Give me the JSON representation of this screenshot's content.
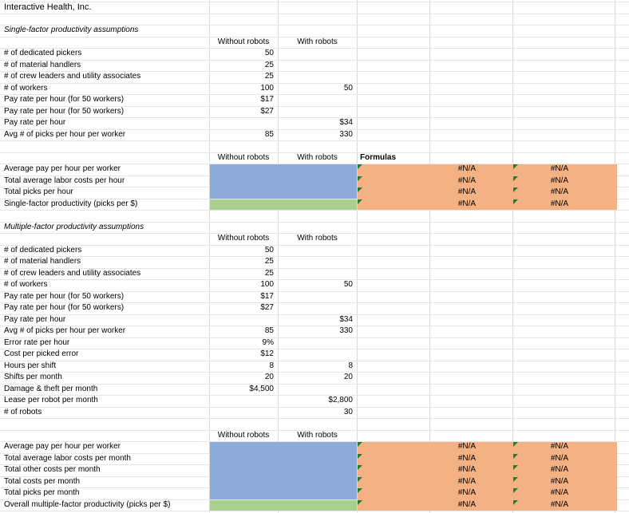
{
  "title": "Interactive Health, Inc.",
  "single_assumptions": {
    "heading": "Single-factor productivity assumptions",
    "col_without": "Without robots",
    "col_with": "With robots",
    "rows": [
      {
        "label": "# of dedicated pickers",
        "without": "50",
        "with": ""
      },
      {
        "label": "# of material handlers",
        "without": "25",
        "with": ""
      },
      {
        "label": "# of crew leaders and utility associates",
        "without": "25",
        "with": ""
      },
      {
        "label": "# of workers",
        "without": "100",
        "with": "50"
      },
      {
        "label": "Pay rate per hour (for 50 workers)",
        "without": "$17",
        "with": ""
      },
      {
        "label": "Pay rate per hour (for 50 workers)",
        "without": "$27",
        "with": ""
      },
      {
        "label": "Pay rate per hour",
        "without": "",
        "with": "$34"
      },
      {
        "label": "Avg # of picks per hour per worker",
        "without": "85",
        "with": "330"
      }
    ]
  },
  "single_results": {
    "col_without": "Without robots",
    "col_with": "With robots",
    "col_formulas": "Formulas",
    "rows": [
      {
        "label": "Average pay per hour per worker",
        "f1": "#N/A",
        "f2": "#N/A"
      },
      {
        "label": "Total average labor costs per hour",
        "f1": "#N/A",
        "f2": "#N/A"
      },
      {
        "label": "Total picks per hour",
        "f1": "#N/A",
        "f2": "#N/A"
      },
      {
        "label": "Single-factor productivity (picks per $)",
        "f1": "#N/A",
        "f2": "#N/A"
      }
    ]
  },
  "multi_assumptions": {
    "heading": "Multiple-factor productivity assumptions",
    "col_without": "Without robots",
    "col_with": "With robots",
    "rows": [
      {
        "label": "# of dedicated pickers",
        "without": "50",
        "with": ""
      },
      {
        "label": "# of material handlers",
        "without": "25",
        "with": ""
      },
      {
        "label": "# of crew leaders and utility associates",
        "without": "25",
        "with": ""
      },
      {
        "label": "# of workers",
        "without": "100",
        "with": "50"
      },
      {
        "label": "Pay rate per hour (for 50 workers)",
        "without": "$17",
        "with": ""
      },
      {
        "label": "Pay rate per hour (for 50 workers)",
        "without": "$27",
        "with": ""
      },
      {
        "label": "Pay rate per hour",
        "without": "",
        "with": "$34"
      },
      {
        "label": "Avg # of picks per hour per worker",
        "without": "85",
        "with": "330"
      },
      {
        "label": "Error rate per hour",
        "without": "9%",
        "with": ""
      },
      {
        "label": "Cost per picked error",
        "without": "$12",
        "with": ""
      },
      {
        "label": "Hours per shift",
        "without": "8",
        "with": "8"
      },
      {
        "label": "Shifts per month",
        "without": "20",
        "with": "20"
      },
      {
        "label": "Damage & theft per month",
        "without": "$4,500",
        "with": ""
      },
      {
        "label": "Lease per robot per month",
        "without": "",
        "with": "$2,800"
      },
      {
        "label": "# of robots",
        "without": "",
        "with": "30"
      }
    ]
  },
  "multi_results": {
    "col_without": "Without robots",
    "col_with": "With robots",
    "rows": [
      {
        "label": "Average pay per hour per worker",
        "f1": "#N/A",
        "f2": "#N/A"
      },
      {
        "label": "Total average labor costs per month",
        "f1": "#N/A",
        "f2": "#N/A"
      },
      {
        "label": "Total other costs per month",
        "f1": "#N/A",
        "f2": "#N/A"
      },
      {
        "label": "Total costs per month",
        "f1": "#N/A",
        "f2": "#N/A"
      },
      {
        "label": "Total picks per month",
        "f1": "#N/A",
        "f2": "#N/A"
      },
      {
        "label": "Overall multiple-factor productivity (picks per $)",
        "f1": "#N/A",
        "f2": "#N/A"
      }
    ]
  },
  "colors": {
    "input_blue": "#8eaadb",
    "result_green": "#a9d08e",
    "formula_orange": "#f4b183",
    "comment_marker": "#1e7e34"
  }
}
